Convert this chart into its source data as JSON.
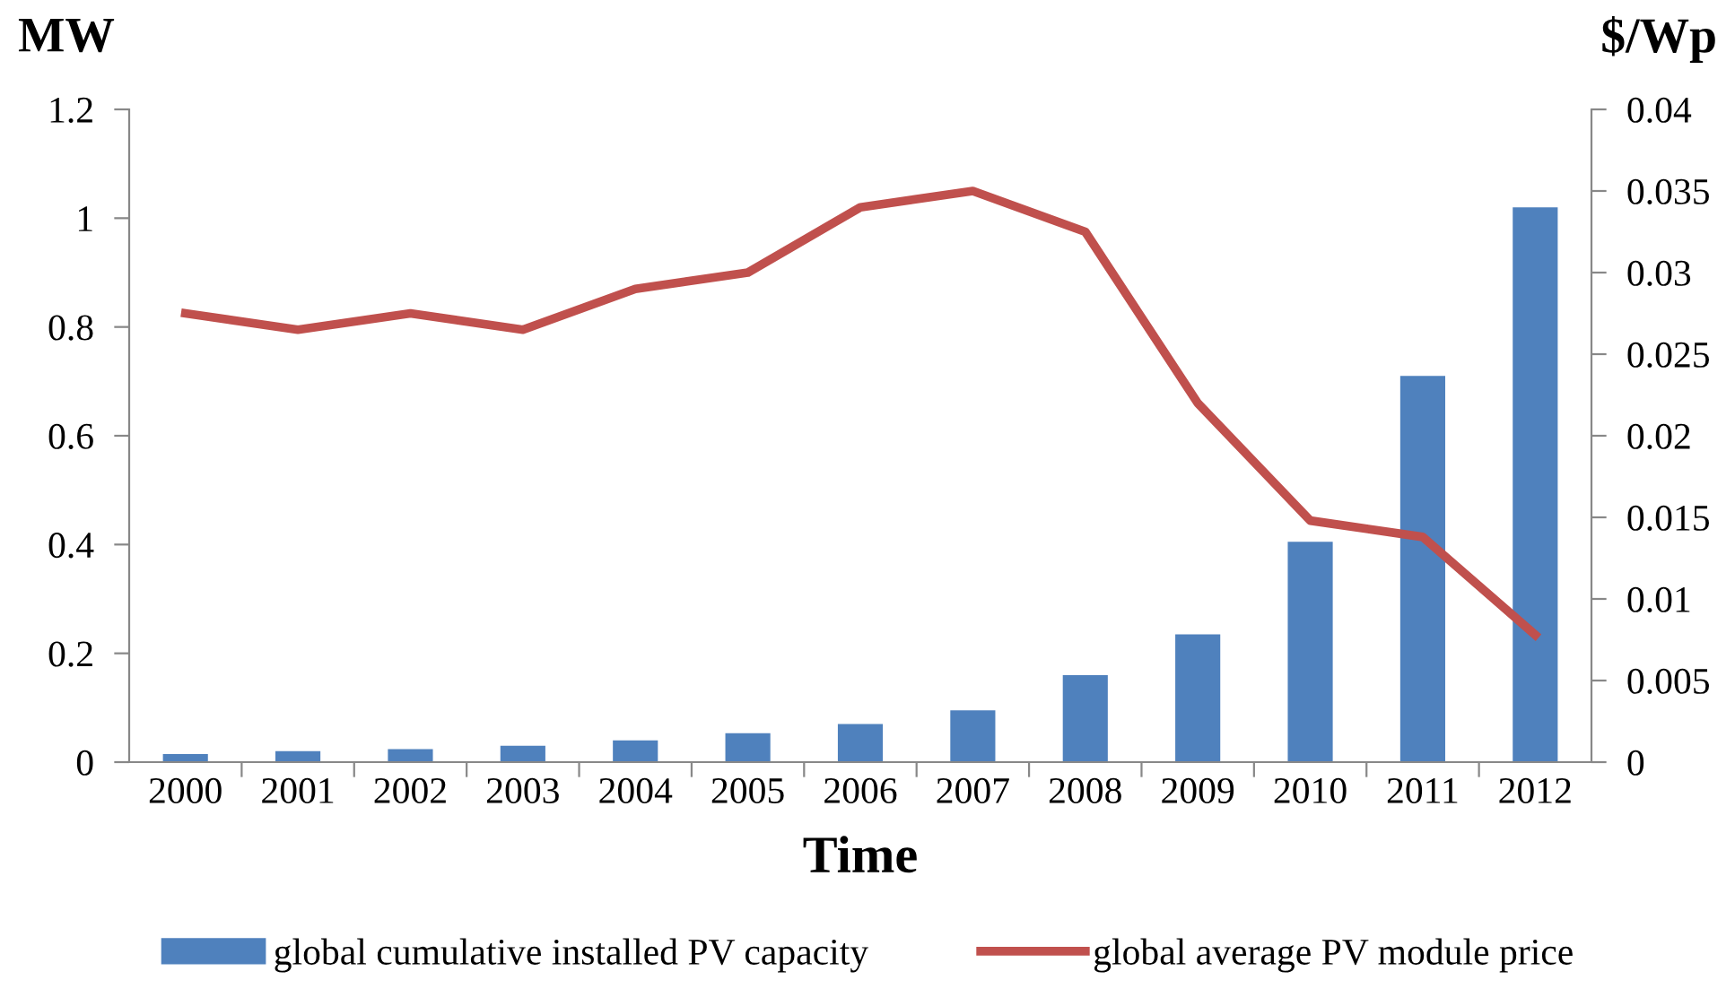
{
  "chart_data": {
    "type": "bar",
    "xlabel": "Time",
    "ylabel": "MW",
    "y2label": "$/Wp",
    "categories": [
      "2000",
      "2001",
      "2002",
      "2003",
      "2004",
      "2005",
      "2006",
      "2007",
      "2008",
      "2009",
      "2010",
      "2011",
      "2012"
    ],
    "series": [
      {
        "name": "global cumulative installed PV capacity",
        "color": "#4f81bd",
        "values": [
          0.015,
          0.02,
          0.024,
          0.03,
          0.04,
          0.053,
          0.07,
          0.095,
          0.16,
          0.235,
          0.405,
          0.71,
          1.02
        ]
      },
      {
        "name": "global average PV module price",
        "type": "line",
        "axis": "y2",
        "color": "#c0504d",
        "values": [
          0.0275,
          0.0265,
          0.0275,
          0.0265,
          0.029,
          0.03,
          0.034,
          0.035,
          0.0325,
          0.022,
          0.0148,
          0.0138,
          0.0078
        ]
      }
    ],
    "ylim": [
      0,
      1.2
    ],
    "yticks": [
      0,
      0.2,
      0.4,
      0.6,
      0.8,
      1,
      1.2
    ],
    "y2lim": [
      0,
      0.04
    ],
    "y2ticks": [
      0,
      0.005,
      0.01,
      0.015,
      0.02,
      0.025,
      0.03,
      0.035,
      0.04
    ],
    "grid": false,
    "legend": "bottom"
  }
}
